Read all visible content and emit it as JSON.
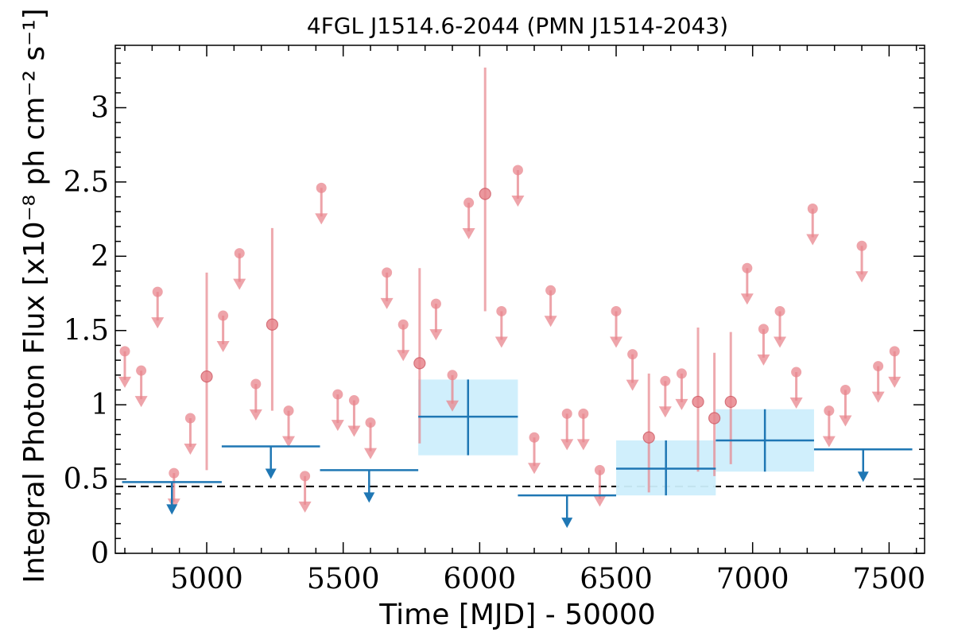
{
  "chart_data": {
    "type": "scatter",
    "title": "4FGL J1514.6-2044 (PMN J1514-2043)",
    "xlabel": "Time [MJD] - 50000",
    "ylabel": "Integral Photon Flux [x10⁻⁸ ph cm⁻² s⁻¹]",
    "xlim": [
      4665,
      7630
    ],
    "ylim": [
      0,
      3.42
    ],
    "xticks": [
      "5000",
      "5500",
      "6000",
      "6500",
      "7000",
      "7500"
    ],
    "yticks": [
      "0",
      "0.5",
      "1",
      "1.5",
      "2",
      "2.5",
      "3"
    ],
    "reference_line": 0.45,
    "colors": {
      "fine": "#e8858d",
      "coarse": "#1f77b4",
      "band": "#cdeefc",
      "reference": "#000000"
    },
    "series": [
      {
        "points": [
          {
            "x": 4700,
            "y": 1.36,
            "upper_limit": true
          },
          {
            "x": 4760,
            "y": 1.23,
            "upper_limit": true
          },
          {
            "x": 4820,
            "y": 1.76,
            "upper_limit": true
          },
          {
            "x": 4880,
            "y": 0.54,
            "upper_limit": true
          },
          {
            "x": 4940,
            "y": 0.91,
            "upper_limit": true
          },
          {
            "x": 5000,
            "y": 1.19,
            "upper_limit": false,
            "lo": 0.56,
            "hi": 1.89
          },
          {
            "x": 5060,
            "y": 1.6,
            "upper_limit": true
          },
          {
            "x": 5120,
            "y": 2.02,
            "upper_limit": true
          },
          {
            "x": 5180,
            "y": 1.14,
            "upper_limit": true
          },
          {
            "x": 5240,
            "y": 1.54,
            "upper_limit": false,
            "lo": 0.96,
            "hi": 2.19
          },
          {
            "x": 5300,
            "y": 0.96,
            "upper_limit": true
          },
          {
            "x": 5360,
            "y": 0.52,
            "upper_limit": true
          },
          {
            "x": 5420,
            "y": 2.46,
            "upper_limit": true
          },
          {
            "x": 5480,
            "y": 1.07,
            "upper_limit": true
          },
          {
            "x": 5540,
            "y": 1.03,
            "upper_limit": true
          },
          {
            "x": 5600,
            "y": 0.88,
            "upper_limit": true
          },
          {
            "x": 5660,
            "y": 1.89,
            "upper_limit": true
          },
          {
            "x": 5720,
            "y": 1.54,
            "upper_limit": true
          },
          {
            "x": 5780,
            "y": 1.28,
            "upper_limit": false,
            "lo": 0.74,
            "hi": 1.92
          },
          {
            "x": 5840,
            "y": 1.68,
            "upper_limit": true
          },
          {
            "x": 5900,
            "y": 1.2,
            "upper_limit": true
          },
          {
            "x": 5960,
            "y": 2.36,
            "upper_limit": true
          },
          {
            "x": 6020,
            "y": 2.42,
            "upper_limit": false,
            "lo": 1.63,
            "hi": 3.27
          },
          {
            "x": 6080,
            "y": 1.63,
            "upper_limit": true
          },
          {
            "x": 6140,
            "y": 2.58,
            "upper_limit": true
          },
          {
            "x": 6200,
            "y": 0.78,
            "upper_limit": true
          },
          {
            "x": 6260,
            "y": 1.77,
            "upper_limit": true
          },
          {
            "x": 6320,
            "y": 0.94,
            "upper_limit": true
          },
          {
            "x": 6380,
            "y": 0.94,
            "upper_limit": true
          },
          {
            "x": 6440,
            "y": 0.56,
            "upper_limit": true
          },
          {
            "x": 6500,
            "y": 1.63,
            "upper_limit": true
          },
          {
            "x": 6560,
            "y": 1.34,
            "upper_limit": true
          },
          {
            "x": 6620,
            "y": 0.78,
            "upper_limit": false,
            "lo": 0.41,
            "hi": 1.21
          },
          {
            "x": 6680,
            "y": 1.16,
            "upper_limit": true
          },
          {
            "x": 6740,
            "y": 1.21,
            "upper_limit": true
          },
          {
            "x": 6800,
            "y": 1.02,
            "upper_limit": false,
            "lo": 0.55,
            "hi": 1.52
          },
          {
            "x": 6860,
            "y": 0.91,
            "upper_limit": false,
            "lo": 0.52,
            "hi": 1.35
          },
          {
            "x": 6920,
            "y": 1.02,
            "upper_limit": false,
            "lo": 0.6,
            "hi": 1.49
          },
          {
            "x": 6980,
            "y": 1.92,
            "upper_limit": true
          },
          {
            "x": 7040,
            "y": 1.51,
            "upper_limit": true
          },
          {
            "x": 7100,
            "y": 1.63,
            "upper_limit": true
          },
          {
            "x": 7160,
            "y": 1.22,
            "upper_limit": true
          },
          {
            "x": 7220,
            "y": 2.32,
            "upper_limit": true
          },
          {
            "x": 7280,
            "y": 0.96,
            "upper_limit": true
          },
          {
            "x": 7340,
            "y": 1.1,
            "upper_limit": true
          },
          {
            "x": 7400,
            "y": 2.07,
            "upper_limit": true
          },
          {
            "x": 7460,
            "y": 1.26,
            "upper_limit": true
          },
          {
            "x": 7520,
            "y": 1.36,
            "upper_limit": true
          }
        ]
      },
      {
        "bins": [
          {
            "x0": 4690,
            "x1": 5055,
            "y": 0.48,
            "upper_limit": true
          },
          {
            "x0": 5055,
            "x1": 5415,
            "y": 0.72,
            "upper_limit": true
          },
          {
            "x0": 5415,
            "x1": 5775,
            "y": 0.56,
            "upper_limit": true
          },
          {
            "x0": 5775,
            "x1": 6140,
            "y": 0.92,
            "upper_limit": false,
            "lo": 0.66,
            "hi": 1.17
          },
          {
            "x0": 6140,
            "x1": 6500,
            "y": 0.39,
            "upper_limit": true
          },
          {
            "x0": 6500,
            "x1": 6865,
            "y": 0.57,
            "upper_limit": false,
            "lo": 0.39,
            "hi": 0.76
          },
          {
            "x0": 6865,
            "x1": 7225,
            "y": 0.76,
            "upper_limit": false,
            "lo": 0.55,
            "hi": 0.97
          },
          {
            "x0": 7225,
            "x1": 7585,
            "y": 0.7,
            "upper_limit": true
          }
        ]
      }
    ]
  }
}
